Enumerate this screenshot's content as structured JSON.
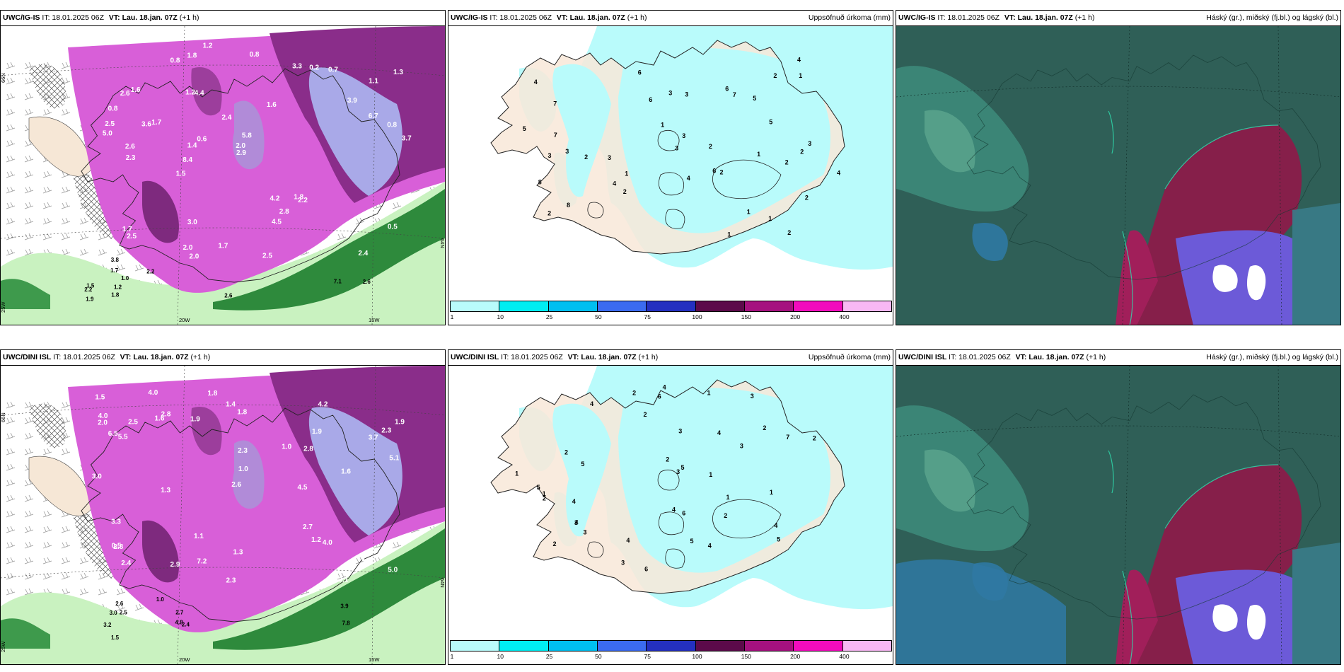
{
  "rows": [
    {
      "model": "UWC/IG-IS",
      "panels": [
        {
          "kind": "temp",
          "model": "UWC/IG-IS",
          "it": "IT: 18.01.2025 06Z",
          "vt_label": "VT:",
          "vt": "Lau. 18.jan. 07Z",
          "lead": "(+1 h)",
          "right": ""
        },
        {
          "kind": "precip",
          "model": "UWC/IG-IS",
          "it": "IT: 18.01.2025 06Z",
          "vt_label": "VT:",
          "vt": "Lau. 18.jan. 07Z",
          "lead": "(+1 h)",
          "right": "Uppsöfnuð úrkoma (mm)"
        },
        {
          "kind": "cloud",
          "model": "UWC/IG-IS",
          "it": "IT: 18.01.2025 06Z",
          "vt_label": "VT:",
          "vt": "Lau. 18.jan. 07Z",
          "lead": "(+1 h)",
          "right": "Háský (gr.), miðský (fj.bl.) og lágský (bl.)"
        }
      ],
      "temp_values": [
        "2.6",
        "2.6",
        "1.1",
        "1.5",
        "1.6",
        "1.5",
        "1.2",
        "2.4",
        "2.2",
        "1.7",
        "1.7",
        "3.8",
        "4.4",
        "5.8",
        "2.2",
        "1.6",
        "1.8",
        "3.7",
        "4.2",
        "6.7",
        "8.4",
        "2.0",
        "1.4",
        "2.6",
        "3.3",
        "1.7",
        "7.1",
        "2.4",
        "1.8",
        "2.6",
        "3.6",
        "5.0",
        "4.5",
        "1.0",
        "0.8",
        "2.0",
        "1.2",
        "2.0",
        "2.9",
        "2.5",
        "3.9",
        "1.3",
        "2.8",
        "2.5",
        "2.0",
        "1.9",
        "1.8",
        "1.7",
        "0.7",
        "1.2",
        "2.3",
        "2.5",
        "0.8",
        "0.2",
        "2.2",
        "0.8",
        "0.8",
        "0.6",
        "0.5",
        "3.0",
        "2.2"
      ],
      "precip_values": [
        "2",
        "3",
        "6",
        "4",
        "2",
        "7",
        "8",
        "3",
        "5",
        "3",
        "7",
        "1",
        "2",
        "6",
        "2",
        "8",
        "1",
        "3",
        "5",
        "2",
        "4",
        "3",
        "5",
        "4",
        "3",
        "7",
        "2",
        "3",
        "1",
        "1",
        "2",
        "3",
        "4",
        "6",
        "6",
        "2",
        "2",
        "1",
        "2",
        "1",
        "1",
        "4"
      ],
      "lon_labels": [
        "20W",
        "15W"
      ],
      "lat_labels": [
        "66N",
        "64N",
        "25W"
      ]
    },
    {
      "model": "UWC/DINI ISL",
      "panels": [
        {
          "kind": "temp",
          "model": "UWC/DINI ISL",
          "it": "IT: 18.01.2025 06Z",
          "vt_label": "VT:",
          "vt": "Lau. 18.jan. 07Z",
          "lead": "(+1 h)",
          "right": ""
        },
        {
          "kind": "precip",
          "model": "UWC/DINI ISL",
          "it": "IT: 18.01.2025 06Z",
          "vt_label": "VT:",
          "vt": "Lau. 18.jan. 07Z",
          "lead": "(+1 h)",
          "right": "Uppsöfnuð úrkoma (mm)"
        },
        {
          "kind": "cloud",
          "model": "UWC/DINI ISL",
          "it": "IT: 18.01.2025 06Z",
          "vt_label": "VT:",
          "vt": "Lau. 18.jan. 07Z",
          "lead": "(+1 h)",
          "right": "Háský (gr.), miðský (fj.bl.) og lágský (bl.)"
        }
      ],
      "temp_values": [
        "2.8",
        "3.1",
        "1.0",
        "1.5",
        "1.8",
        "1.8",
        "4.5",
        "2.8",
        "1.9",
        "2.4",
        "2.7",
        "5.1",
        "5.5",
        "1.6",
        "3.9",
        "2.3",
        "2.9",
        "3.7",
        "6.5",
        "7.8",
        "1.3",
        "1.6",
        "2.5",
        "3.3",
        "4.0",
        "7.2",
        "1.9",
        "1.2",
        "2.5",
        "3.2",
        "2.6",
        "4.2",
        "4.0",
        "5.0",
        "1.1",
        "1.4",
        "2.4",
        "2.3",
        "1.9",
        "3.0",
        "4.8",
        "0.5",
        "1.0",
        "1.3",
        "3.0",
        "2.3",
        "2.7",
        "2.8",
        "1.0",
        "1.3",
        "1.5",
        "2.6",
        "2.0",
        "4.0"
      ],
      "precip_values": [
        "2",
        "3",
        "4",
        "2",
        "6",
        "5",
        "4",
        "4",
        "7",
        "3",
        "5",
        "4",
        "2",
        "3",
        "6",
        "2",
        "5",
        "1",
        "3",
        "3",
        "4",
        "6",
        "2",
        "5",
        "2",
        "4",
        "1",
        "1",
        "3",
        "1",
        "2",
        "3",
        "5",
        "4",
        "4",
        "2",
        "2",
        "1",
        "4",
        "1"
      ],
      "lon_labels": [
        "20W",
        "15W"
      ],
      "lat_labels": [
        "66N",
        "64N",
        "25W"
      ]
    }
  ],
  "colorbar": {
    "ticks": [
      "1",
      "10",
      "25",
      "50",
      "75",
      "100",
      "150",
      "200",
      "400"
    ],
    "colors": [
      "#b9fbfb",
      "#00eef2",
      "#00bff0",
      "#3b6bf0",
      "#2430c0",
      "#5c0a4a",
      "#a5117f",
      "#f20cbd",
      "#f8b8f4"
    ]
  }
}
